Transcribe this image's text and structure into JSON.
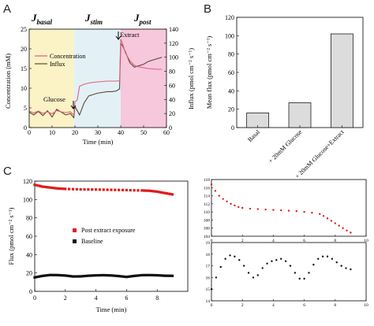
{
  "panels": {
    "a": {
      "letter": "A",
      "y_left_label": "Concentration (mM)",
      "y_right_label": "Influx (pmol cm⁻² s⁻¹)",
      "x_label": "Time (min)",
      "phase_main": [
        "J",
        "J",
        "J"
      ],
      "phase_sub": [
        "basal",
        "stim",
        "post"
      ],
      "legend": [
        "Concentration",
        "Influx"
      ],
      "annotations": {
        "glucose": "Glucose",
        "extract": "Extract"
      }
    },
    "b": {
      "letter": "B",
      "y_label": "Mean flux (pmol cm⁻² s⁻¹)"
    },
    "c": {
      "letter": "C",
      "y_label": "Flux (pmol cm⁻² s⁻¹)",
      "x_label": "Time (min)",
      "legend": [
        "Post extract exposure",
        "Baseline"
      ]
    }
  },
  "chart_data": [
    {
      "panel": "A",
      "type": "line",
      "xlabel": "Time (min)",
      "ylabel_left": "Concentration (mM)",
      "ylabel_right": "Influx (pmol cm⁻² s⁻¹)",
      "xlim": [
        0,
        60
      ],
      "ylim_left": [
        0,
        25
      ],
      "ylim_right": [
        0,
        140
      ],
      "xticks": [
        "0",
        "10",
        "20",
        "30",
        "40",
        "50",
        "60"
      ],
      "yticks_left": [
        "0",
        "5",
        "10",
        "15",
        "20",
        "25"
      ],
      "yticks_right": [
        "0",
        "20",
        "40",
        "60",
        "80",
        "100",
        "120",
        "140"
      ],
      "colors": {
        "concentration": "#e0607a",
        "influx": "#5a4a30",
        "basal_band": "#fbf2c6",
        "stim_band": "#e3f1f7",
        "post_band": "#f7c7dc"
      },
      "series": [
        {
          "name": "Concentration",
          "x": [
            0,
            2,
            4,
            6,
            8,
            10,
            12,
            14,
            16,
            18,
            19.5,
            20,
            21,
            22,
            24,
            26,
            28,
            30,
            32,
            34,
            36,
            38,
            39.5,
            40,
            41,
            42,
            44,
            46,
            48,
            50,
            52,
            54,
            56,
            58
          ],
          "y": [
            4.2,
            3.7,
            4.2,
            3.6,
            4.0,
            3.5,
            4.3,
            4.0,
            3.8,
            4.0,
            3.2,
            6.5,
            7.0,
            10.5,
            11.0,
            11.3,
            11.5,
            11.6,
            11.7,
            11.8,
            11.8,
            11.8,
            11.9,
            22.5,
            21.0,
            19.0,
            17.0,
            15.8,
            15.4,
            15.2,
            15.0,
            14.9,
            14.8,
            14.8
          ]
        },
        {
          "name": "Influx",
          "x": [
            0,
            2,
            4,
            6,
            8,
            10,
            12,
            14,
            16,
            18,
            19.5,
            20,
            21,
            22,
            24,
            26,
            28,
            30,
            32,
            34,
            36,
            38,
            39.5,
            40,
            41,
            42,
            44,
            46,
            48,
            50,
            52,
            54,
            56,
            58
          ],
          "y": [
            22,
            18,
            23,
            17,
            24,
            15,
            26,
            22,
            18,
            20,
            14,
            30,
            24,
            18,
            35,
            45,
            47,
            49,
            50,
            51,
            51,
            52,
            55,
            120,
            115,
            108,
            92,
            86,
            88,
            90,
            94,
            96,
            98,
            100
          ]
        }
      ]
    },
    {
      "panel": "B",
      "type": "bar",
      "categories": [
        "Basal",
        "+ 20mM Glucose",
        "+ 20mM Glucose+Extract"
      ],
      "values": [
        16,
        27,
        102
      ],
      "ylabel": "Mean flux (pmol cm⁻² s⁻¹)",
      "ylim": [
        0,
        120
      ],
      "yticks": [
        "0",
        "20",
        "40",
        "60",
        "80",
        "100",
        "120"
      ],
      "bar_color": "#dcdcdc"
    },
    {
      "panel": "C",
      "type": "scatter",
      "xlabel": "Time (min)",
      "ylabel": "Flux (pmol cm⁻² s⁻¹)",
      "xlim": [
        0,
        10
      ],
      "ylim": [
        0,
        120
      ],
      "xticks": [
        "0",
        "2",
        "4",
        "6",
        "8"
      ],
      "yticks": [
        "0",
        "20",
        "40",
        "60",
        "80",
        "100",
        "120"
      ],
      "series": [
        {
          "name": "Post extract exposure",
          "color": "#e01b1b",
          "x": [
            0,
            0.5,
            1,
            1.5,
            2,
            3,
            4,
            5,
            6,
            7,
            7.5,
            8,
            8.5,
            9
          ],
          "y": [
            116,
            114,
            113,
            112,
            111.5,
            111,
            110.8,
            110.5,
            110.2,
            109.8,
            109.5,
            108.5,
            107,
            105.5
          ]
        },
        {
          "name": "Baseline",
          "color": "#111111",
          "x": [
            0,
            0.5,
            1,
            1.5,
            2,
            2.5,
            3,
            3.5,
            4,
            4.5,
            5,
            5.5,
            6,
            6.5,
            7,
            7.5,
            8,
            8.5,
            9
          ],
          "y": [
            15.2,
            16.8,
            17.8,
            17.7,
            17.2,
            16.2,
            16.3,
            17.0,
            17.4,
            17.6,
            17.3,
            16.6,
            15.7,
            16.8,
            17.6,
            17.7,
            17.5,
            17.0,
            16.9
          ]
        }
      ]
    },
    {
      "panel": "C-inset-top",
      "type": "scatter",
      "xlim": [
        0,
        10
      ],
      "ylim": [
        104,
        118
      ],
      "xticks": [
        "0",
        "2",
        "4",
        "6",
        "8",
        "10"
      ],
      "yticks": [
        "104",
        "106",
        "108",
        "110",
        "112",
        "114",
        "116",
        "118"
      ],
      "series": [
        {
          "color": "#e01b1b",
          "x": [
            0,
            0.25,
            0.5,
            0.75,
            1,
            1.25,
            1.5,
            1.75,
            2,
            2.5,
            3,
            3.5,
            4,
            4.5,
            5,
            5.5,
            6,
            6.5,
            7,
            7.25,
            7.5,
            7.75,
            8,
            8.25,
            8.5,
            8.75,
            9
          ],
          "y": [
            116.8,
            115.2,
            114.0,
            113.2,
            112.6,
            112.0,
            111.6,
            111.2,
            111.0,
            110.8,
            110.7,
            110.6,
            110.5,
            110.4,
            110.3,
            110.2,
            110.0,
            109.8,
            109.5,
            109.0,
            108.4,
            107.8,
            107.2,
            106.6,
            106.0,
            105.4,
            104.9
          ]
        }
      ]
    },
    {
      "panel": "C-inset-bottom",
      "type": "scatter",
      "xlim": [
        0,
        10
      ],
      "ylim": [
        14,
        19
      ],
      "xticks": [
        "0",
        "2",
        "4",
        "6",
        "8",
        "10"
      ],
      "yticks": [
        "14",
        "15",
        "16",
        "17",
        "18",
        "19"
      ],
      "series": [
        {
          "color": "#111111",
          "x": [
            0,
            0.3,
            0.6,
            0.9,
            1.2,
            1.5,
            1.8,
            2.1,
            2.4,
            2.7,
            3.0,
            3.3,
            3.6,
            3.9,
            4.2,
            4.5,
            4.8,
            5.1,
            5.4,
            5.7,
            6.0,
            6.3,
            6.6,
            6.9,
            7.2,
            7.5,
            7.8,
            8.1,
            8.4,
            8.7,
            9.0
          ],
          "y": [
            15.0,
            16.0,
            16.9,
            17.6,
            17.9,
            17.8,
            17.5,
            17.0,
            16.4,
            16.0,
            16.2,
            16.8,
            17.2,
            17.4,
            17.5,
            17.6,
            17.4,
            17.0,
            16.4,
            15.9,
            15.9,
            16.4,
            17.1,
            17.6,
            17.8,
            17.8,
            17.6,
            17.3,
            17.0,
            16.8,
            16.7
          ]
        }
      ]
    }
  ]
}
